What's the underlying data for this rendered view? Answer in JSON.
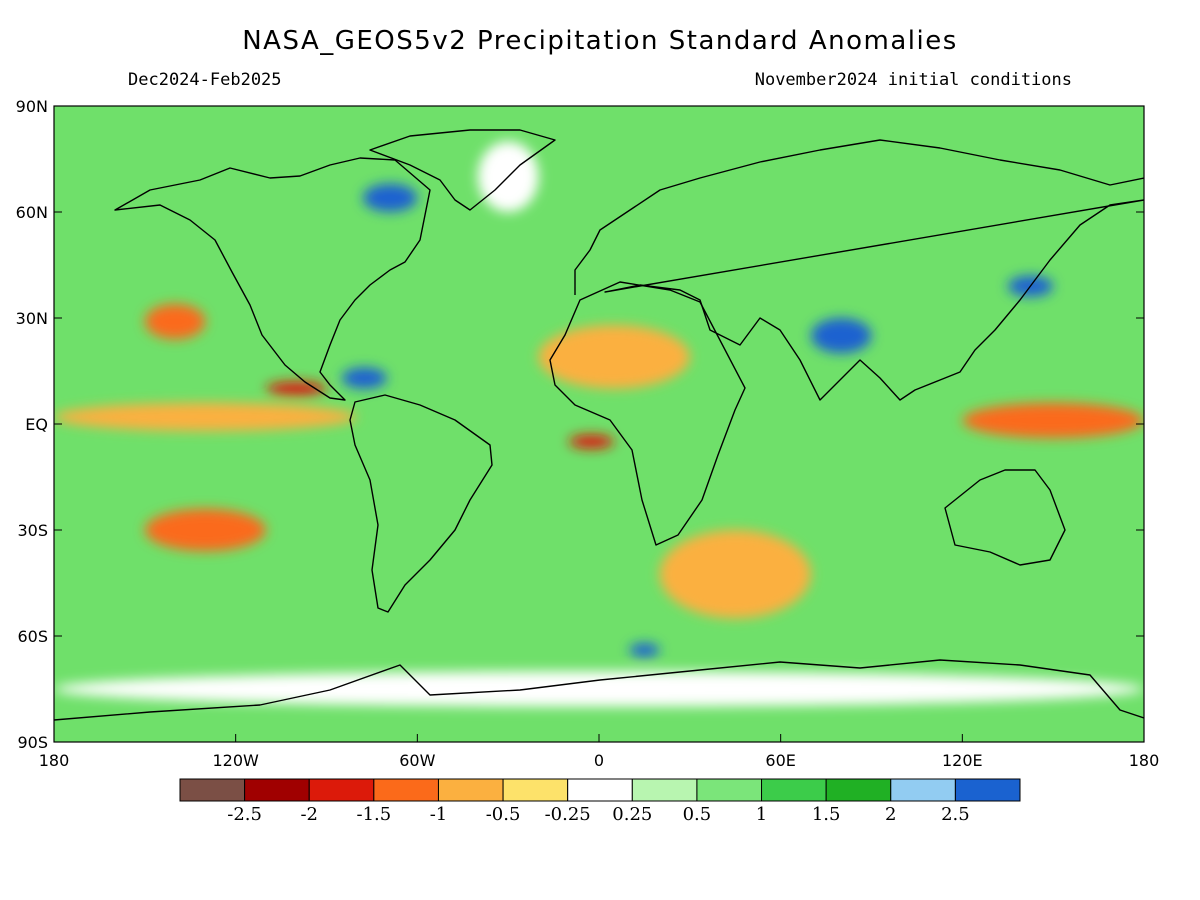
{
  "header": {
    "title": "NASA_GEOS5v2 Precipitation Standard Anomalies",
    "period": "Dec2024-Feb2025",
    "initial_conditions": "November2024 initial conditions"
  },
  "axes": {
    "lat_labels": [
      "90N",
      "60N",
      "30N",
      "EQ",
      "30S",
      "60S",
      "90S"
    ],
    "lat_values": [
      90,
      60,
      30,
      0,
      -30,
      -60,
      -90
    ],
    "lon_labels": [
      "180",
      "120W",
      "60W",
      "0",
      "60E",
      "120E",
      "180"
    ],
    "lon_values": [
      -180,
      -120,
      -60,
      0,
      60,
      120,
      180
    ]
  },
  "colorbar": {
    "colors": [
      "#7b4f45",
      "#a00000",
      "#dc1a0a",
      "#fb6a1a",
      "#fbb040",
      "#fde26a",
      "#ffffff",
      "#b8f5b0",
      "#7be57a",
      "#3ccc4a",
      "#20b024",
      "#92ccf2",
      "#1a62d0"
    ],
    "labels": [
      "-2.5",
      "-2",
      "-1.5",
      "-1",
      "-0.5",
      "-0.25",
      "0.25",
      "0.5",
      "1",
      "1.5",
      "2",
      "2.5"
    ]
  },
  "map_data": {
    "background_color": "#6fe06a",
    "anomaly_regions": [
      {
        "level": "dry_moderate",
        "color": "#fbb040",
        "lon": [
          -180,
          -80
        ],
        "lat": [
          -2,
          6
        ]
      },
      {
        "level": "dry_strong",
        "color": "#fb6a1a",
        "lon": [
          -150,
          -130
        ],
        "lat": [
          24,
          34
        ]
      },
      {
        "level": "dry_strong",
        "color": "#fb6a1a",
        "lon": [
          -150,
          -110
        ],
        "lat": [
          -36,
          -24
        ]
      },
      {
        "level": "dry_very_strong",
        "color": "#dc1a0a",
        "lon": [
          -110,
          -90
        ],
        "lat": [
          8,
          12
        ]
      },
      {
        "level": "dry_very_strong",
        "color": "#dc1a0a",
        "lon": [
          -10,
          5
        ],
        "lat": [
          -7,
          -3
        ]
      },
      {
        "level": "dry_strong",
        "color": "#fb6a1a",
        "lon": [
          120,
          180
        ],
        "lat": [
          -4,
          6
        ]
      },
      {
        "level": "dry_moderate",
        "color": "#fbb040",
        "lon": [
          -20,
          30
        ],
        "lat": [
          10,
          28
        ]
      },
      {
        "level": "dry_moderate",
        "color": "#fbb040",
        "lon": [
          20,
          70
        ],
        "lat": [
          -55,
          -30
        ]
      },
      {
        "level": "wet_extreme",
        "color": "#1a62d0",
        "lon": [
          -85,
          -70
        ],
        "lat": [
          10,
          16
        ]
      },
      {
        "level": "wet_extreme",
        "color": "#1a62d0",
        "lon": [
          -78,
          -60
        ],
        "lat": [
          60,
          68
        ]
      },
      {
        "level": "wet_extreme",
        "color": "#1a62d0",
        "lon": [
          70,
          90
        ],
        "lat": [
          20,
          30
        ]
      },
      {
        "level": "wet_extreme",
        "color": "#1a62d0",
        "lon": [
          135,
          150
        ],
        "lat": [
          36,
          42
        ]
      },
      {
        "level": "wet_extreme",
        "color": "#1a62d0",
        "lon": [
          10,
          20
        ],
        "lat": [
          -66,
          -62
        ]
      },
      {
        "level": "near_normal",
        "color": "#ffffff",
        "lon": [
          -180,
          180
        ],
        "lat": [
          -80,
          -70
        ]
      },
      {
        "level": "near_normal",
        "color": "#ffffff",
        "lon": [
          -40,
          -20
        ],
        "lat": [
          60,
          80
        ]
      }
    ]
  }
}
